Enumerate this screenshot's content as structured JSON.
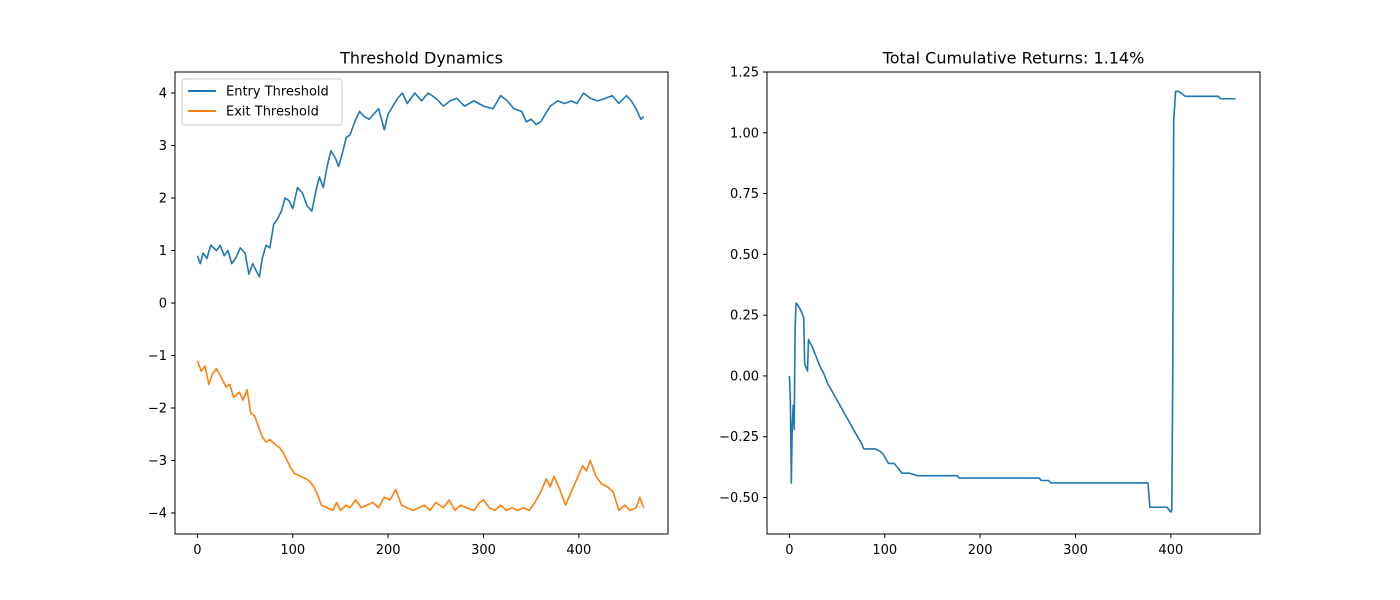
{
  "colors": {
    "entry": "#1f77b4",
    "exit": "#ff7f0e",
    "returns": "#1f77b4",
    "axis": "#000000",
    "legend_border": "#cccccc"
  },
  "chart_data": [
    {
      "type": "line",
      "title": "Threshold Dynamics",
      "xlabel": "",
      "ylabel": "",
      "xlim": [
        -23.5,
        493.5
      ],
      "ylim": [
        -4.4,
        4.4
      ],
      "xticks": [
        0,
        100,
        200,
        300,
        400
      ],
      "yticks": [
        -4,
        -3,
        -2,
        -1,
        0,
        1,
        2,
        3,
        4
      ],
      "legend_position": "upper-left",
      "grid": false,
      "series": [
        {
          "name": "Entry Threshold",
          "color_key": "entry",
          "points": [
            [
              0,
              0.9
            ],
            [
              3,
              0.75
            ],
            [
              6,
              0.95
            ],
            [
              10,
              0.85
            ],
            [
              14,
              1.1
            ],
            [
              20,
              1.0
            ],
            [
              24,
              1.1
            ],
            [
              28,
              0.9
            ],
            [
              32,
              1.0
            ],
            [
              36,
              0.75
            ],
            [
              40,
              0.85
            ],
            [
              45,
              1.05
            ],
            [
              50,
              0.95
            ],
            [
              54,
              0.55
            ],
            [
              58,
              0.75
            ],
            [
              62,
              0.6
            ],
            [
              65,
              0.5
            ],
            [
              68,
              0.85
            ],
            [
              72,
              1.1
            ],
            [
              76,
              1.05
            ],
            [
              80,
              1.5
            ],
            [
              84,
              1.6
            ],
            [
              88,
              1.75
            ],
            [
              92,
              2.0
            ],
            [
              96,
              1.95
            ],
            [
              100,
              1.8
            ],
            [
              105,
              2.2
            ],
            [
              110,
              2.1
            ],
            [
              115,
              1.85
            ],
            [
              120,
              1.75
            ],
            [
              125,
              2.2
            ],
            [
              128,
              2.4
            ],
            [
              132,
              2.2
            ],
            [
              136,
              2.6
            ],
            [
              140,
              2.9
            ],
            [
              145,
              2.75
            ],
            [
              148,
              2.6
            ],
            [
              152,
              2.85
            ],
            [
              156,
              3.15
            ],
            [
              160,
              3.2
            ],
            [
              165,
              3.45
            ],
            [
              170,
              3.65
            ],
            [
              175,
              3.55
            ],
            [
              180,
              3.5
            ],
            [
              185,
              3.6
            ],
            [
              190,
              3.7
            ],
            [
              196,
              3.3
            ],
            [
              200,
              3.6
            ],
            [
              205,
              3.75
            ],
            [
              210,
              3.9
            ],
            [
              215,
              4.0
            ],
            [
              220,
              3.8
            ],
            [
              228,
              4.0
            ],
            [
              235,
              3.85
            ],
            [
              242,
              4.0
            ],
            [
              250,
              3.9
            ],
            [
              258,
              3.75
            ],
            [
              265,
              3.85
            ],
            [
              272,
              3.9
            ],
            [
              280,
              3.75
            ],
            [
              290,
              3.85
            ],
            [
              300,
              3.75
            ],
            [
              310,
              3.7
            ],
            [
              318,
              3.95
            ],
            [
              325,
              3.85
            ],
            [
              332,
              3.7
            ],
            [
              340,
              3.65
            ],
            [
              345,
              3.45
            ],
            [
              350,
              3.5
            ],
            [
              355,
              3.4
            ],
            [
              360,
              3.45
            ],
            [
              365,
              3.6
            ],
            [
              370,
              3.75
            ],
            [
              378,
              3.85
            ],
            [
              385,
              3.8
            ],
            [
              392,
              3.85
            ],
            [
              398,
              3.8
            ],
            [
              405,
              4.0
            ],
            [
              412,
              3.9
            ],
            [
              420,
              3.85
            ],
            [
              428,
              3.9
            ],
            [
              435,
              3.95
            ],
            [
              442,
              3.8
            ],
            [
              450,
              3.95
            ],
            [
              455,
              3.85
            ],
            [
              460,
              3.7
            ],
            [
              465,
              3.5
            ],
            [
              468,
              3.55
            ]
          ]
        },
        {
          "name": "Exit Threshold",
          "color_key": "exit",
          "points": [
            [
              0,
              -1.1
            ],
            [
              4,
              -1.3
            ],
            [
              8,
              -1.2
            ],
            [
              12,
              -1.55
            ],
            [
              16,
              -1.35
            ],
            [
              20,
              -1.25
            ],
            [
              26,
              -1.45
            ],
            [
              30,
              -1.6
            ],
            [
              34,
              -1.55
            ],
            [
              38,
              -1.8
            ],
            [
              44,
              -1.7
            ],
            [
              48,
              -1.85
            ],
            [
              52,
              -1.65
            ],
            [
              56,
              -2.1
            ],
            [
              60,
              -2.15
            ],
            [
              64,
              -2.35
            ],
            [
              68,
              -2.55
            ],
            [
              72,
              -2.65
            ],
            [
              76,
              -2.6
            ],
            [
              82,
              -2.7
            ],
            [
              86,
              -2.75
            ],
            [
              90,
              -2.85
            ],
            [
              94,
              -3.0
            ],
            [
              98,
              -3.15
            ],
            [
              102,
              -3.25
            ],
            [
              108,
              -3.3
            ],
            [
              114,
              -3.35
            ],
            [
              118,
              -3.4
            ],
            [
              122,
              -3.5
            ],
            [
              126,
              -3.65
            ],
            [
              130,
              -3.85
            ],
            [
              136,
              -3.9
            ],
            [
              142,
              -3.95
            ],
            [
              146,
              -3.8
            ],
            [
              150,
              -3.95
            ],
            [
              156,
              -3.85
            ],
            [
              160,
              -3.9
            ],
            [
              166,
              -3.75
            ],
            [
              172,
              -3.9
            ],
            [
              178,
              -3.85
            ],
            [
              184,
              -3.8
            ],
            [
              190,
              -3.9
            ],
            [
              196,
              -3.7
            ],
            [
              202,
              -3.75
            ],
            [
              208,
              -3.55
            ],
            [
              214,
              -3.85
            ],
            [
              220,
              -3.9
            ],
            [
              226,
              -3.95
            ],
            [
              232,
              -3.9
            ],
            [
              238,
              -3.85
            ],
            [
              244,
              -3.95
            ],
            [
              250,
              -3.8
            ],
            [
              258,
              -3.9
            ],
            [
              264,
              -3.75
            ],
            [
              270,
              -3.95
            ],
            [
              276,
              -3.85
            ],
            [
              282,
              -3.9
            ],
            [
              290,
              -3.95
            ],
            [
              296,
              -3.8
            ],
            [
              300,
              -3.75
            ],
            [
              306,
              -3.9
            ],
            [
              312,
              -3.95
            ],
            [
              318,
              -3.85
            ],
            [
              324,
              -3.95
            ],
            [
              330,
              -3.9
            ],
            [
              336,
              -3.95
            ],
            [
              342,
              -3.9
            ],
            [
              348,
              -3.95
            ],
            [
              354,
              -3.8
            ],
            [
              360,
              -3.6
            ],
            [
              366,
              -3.35
            ],
            [
              370,
              -3.5
            ],
            [
              374,
              -3.3
            ],
            [
              380,
              -3.55
            ],
            [
              386,
              -3.85
            ],
            [
              392,
              -3.6
            ],
            [
              398,
              -3.35
            ],
            [
              404,
              -3.1
            ],
            [
              408,
              -3.2
            ],
            [
              412,
              -3.0
            ],
            [
              418,
              -3.3
            ],
            [
              424,
              -3.45
            ],
            [
              430,
              -3.5
            ],
            [
              436,
              -3.6
            ],
            [
              442,
              -3.95
            ],
            [
              448,
              -3.85
            ],
            [
              454,
              -3.95
            ],
            [
              460,
              -3.9
            ],
            [
              464,
              -3.7
            ],
            [
              468,
              -3.9
            ]
          ]
        }
      ]
    },
    {
      "type": "line",
      "title": "Total Cumulative Returns: 1.14%",
      "xlabel": "",
      "ylabel": "",
      "xlim": [
        -23.5,
        493.5
      ],
      "ylim": [
        -0.65,
        1.25
      ],
      "xticks": [
        0,
        100,
        200,
        300,
        400
      ],
      "yticks": [
        -0.5,
        -0.25,
        0.0,
        0.25,
        0.5,
        0.75,
        1.0,
        1.25
      ],
      "ytick_labels": [
        "−0.50",
        "−0.25",
        "0.00",
        "0.25",
        "0.50",
        "0.75",
        "1.00",
        "1.25"
      ],
      "grid": false,
      "series": [
        {
          "name": "",
          "color_key": "returns",
          "points": [
            [
              0,
              0.0
            ],
            [
              1,
              -0.1
            ],
            [
              2,
              -0.44
            ],
            [
              3,
              -0.2
            ],
            [
              4,
              -0.12
            ],
            [
              5,
              -0.22
            ],
            [
              6,
              0.2
            ],
            [
              7,
              0.3
            ],
            [
              9,
              0.29
            ],
            [
              12,
              0.27
            ],
            [
              15,
              0.24
            ],
            [
              16,
              0.05
            ],
            [
              18,
              0.03
            ],
            [
              19,
              0.02
            ],
            [
              20,
              0.15
            ],
            [
              24,
              0.12
            ],
            [
              28,
              0.08
            ],
            [
              32,
              0.04
            ],
            [
              36,
              0.01
            ],
            [
              40,
              -0.03
            ],
            [
              50,
              -0.1
            ],
            [
              60,
              -0.17
            ],
            [
              70,
              -0.24
            ],
            [
              76,
              -0.28
            ],
            [
              78,
              -0.3
            ],
            [
              90,
              -0.3
            ],
            [
              95,
              -0.31
            ],
            [
              98,
              -0.32
            ],
            [
              104,
              -0.36
            ],
            [
              110,
              -0.36
            ],
            [
              114,
              -0.38
            ],
            [
              116,
              -0.39
            ],
            [
              118,
              -0.4
            ],
            [
              126,
              -0.4
            ],
            [
              134,
              -0.41
            ],
            [
              176,
              -0.41
            ],
            [
              178,
              -0.42
            ],
            [
              262,
              -0.42
            ],
            [
              264,
              -0.43
            ],
            [
              272,
              -0.43
            ],
            [
              274,
              -0.44
            ],
            [
              376,
              -0.44
            ],
            [
              378,
              -0.54
            ],
            [
              396,
              -0.54
            ],
            [
              398,
              -0.55
            ],
            [
              400,
              -0.56
            ],
            [
              401,
              -0.55
            ],
            [
              402,
              0.0
            ],
            [
              403,
              1.05
            ],
            [
              405,
              1.17
            ],
            [
              408,
              1.17
            ],
            [
              412,
              1.16
            ],
            [
              415,
              1.15
            ],
            [
              450,
              1.15
            ],
            [
              452,
              1.14
            ],
            [
              468,
              1.14
            ]
          ]
        }
      ]
    }
  ]
}
